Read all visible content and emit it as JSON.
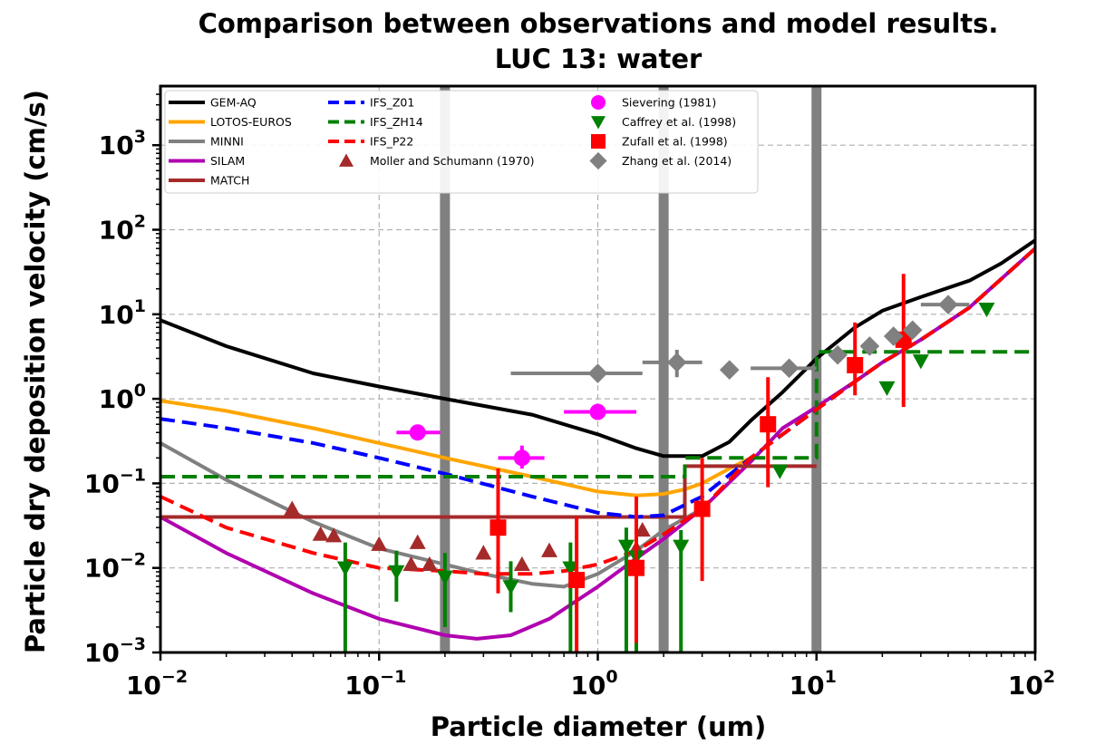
{
  "chart_data": {
    "type": "line",
    "title": "Comparison between observations and model results.",
    "subtitle": "LUC 13: water",
    "xlabel": "Particle diameter (um)",
    "ylabel": "Particle dry deposition velocity (cm/s)",
    "x_scale": "log",
    "y_scale": "log",
    "xlim": [
      0.01,
      100
    ],
    "ylim": [
      0.001,
      5000
    ],
    "x_ticks": [
      {
        "value": 0.01,
        "base": "10",
        "exp": "−2"
      },
      {
        "value": 0.1,
        "base": "10",
        "exp": "−1"
      },
      {
        "value": 1,
        "base": "10",
        "exp": "0"
      },
      {
        "value": 10,
        "base": "10",
        "exp": "1"
      },
      {
        "value": 100,
        "base": "10",
        "exp": "2"
      }
    ],
    "y_ticks": [
      {
        "value": 0.001,
        "base": "10",
        "exp": "−3"
      },
      {
        "value": 0.01,
        "base": "10",
        "exp": "−2"
      },
      {
        "value": 0.1,
        "base": "10",
        "exp": "−1"
      },
      {
        "value": 1,
        "base": "10",
        "exp": "0"
      },
      {
        "value": 10,
        "base": "10",
        "exp": "1"
      },
      {
        "value": 100,
        "base": "10",
        "exp": "2"
      },
      {
        "value": 1000,
        "base": "10",
        "exp": "3"
      }
    ],
    "grid": "dashed",
    "legend_position": "top-left",
    "vertical_bands": [
      0.2,
      2.0,
      10.0
    ],
    "series": [
      {
        "name": "GEM-AQ",
        "kind": "line",
        "color": "#000000",
        "dash": "solid",
        "x": [
          0.01,
          0.02,
          0.05,
          0.1,
          0.2,
          0.5,
          1.0,
          1.5,
          2.0,
          3.0,
          4.0,
          5.0,
          7.0,
          10.0,
          15.0,
          20.0,
          30.0,
          50.0,
          70.0,
          100.0
        ],
        "y": [
          8.5,
          4.2,
          2.0,
          1.4,
          1.0,
          0.65,
          0.38,
          0.26,
          0.21,
          0.21,
          0.31,
          0.55,
          1.2,
          3.0,
          7.0,
          11.0,
          16.0,
          25.0,
          40.0,
          75.0
        ]
      },
      {
        "name": "LOTOS-EUROS",
        "kind": "line",
        "color": "#ffa500",
        "dash": "solid",
        "x": [
          0.01,
          0.02,
          0.05,
          0.1,
          0.2,
          0.5,
          1.0,
          1.5,
          2.0,
          2.5,
          3.0,
          4.0,
          5.0
        ],
        "y": [
          0.95,
          0.72,
          0.45,
          0.3,
          0.2,
          0.12,
          0.08,
          0.072,
          0.075,
          0.085,
          0.1,
          0.15,
          0.2
        ]
      },
      {
        "name": "MINNI",
        "kind": "line",
        "color": "#808080",
        "dash": "solid",
        "x": [
          0.01,
          0.02,
          0.05,
          0.1,
          0.2,
          0.3,
          0.5,
          0.7,
          1.0,
          1.5,
          2.0,
          3.0
        ],
        "y": [
          0.3,
          0.11,
          0.035,
          0.017,
          0.011,
          0.0085,
          0.0065,
          0.006,
          0.0085,
          0.016,
          0.028,
          0.05
        ]
      },
      {
        "name": "SILAM",
        "kind": "line",
        "color": "#b000b0",
        "dash": "solid",
        "x": [
          0.01,
          0.02,
          0.05,
          0.1,
          0.2,
          0.28,
          0.4,
          0.6,
          1.0,
          1.5,
          2.0,
          3.0,
          5.0,
          7.0,
          10.0,
          15.0,
          20.0,
          30.0,
          50.0,
          100.0
        ],
        "y": [
          0.04,
          0.015,
          0.005,
          0.0025,
          0.0016,
          0.00145,
          0.0016,
          0.0025,
          0.006,
          0.013,
          0.022,
          0.05,
          0.18,
          0.45,
          0.8,
          1.6,
          2.7,
          5.0,
          12.0,
          60.0
        ]
      },
      {
        "name": "MATCH",
        "kind": "step",
        "color": "#a52a2a",
        "dash": "solid",
        "x": [
          0.01,
          2.5,
          2.5,
          10.0
        ],
        "y": [
          0.04,
          0.04,
          0.16,
          0.16
        ]
      },
      {
        "name": "IFS_Z01",
        "kind": "line",
        "color": "#0000ff",
        "dash": "dashed",
        "x": [
          0.01,
          0.02,
          0.05,
          0.1,
          0.2,
          0.5,
          1.0,
          1.5,
          2.0,
          3.0,
          5.0,
          10.0,
          15.0,
          20.0,
          30.0,
          50.0,
          100.0
        ],
        "y": [
          0.58,
          0.45,
          0.3,
          0.2,
          0.13,
          0.07,
          0.045,
          0.04,
          0.042,
          0.07,
          0.2,
          0.75,
          1.6,
          2.7,
          5.0,
          12.0,
          60.0
        ]
      },
      {
        "name": "IFS_ZH14",
        "kind": "step",
        "color": "#008000",
        "dash": "dashed",
        "x": [
          0.01,
          2.5,
          2.5,
          10.0,
          10.0,
          100.0
        ],
        "y": [
          0.12,
          0.12,
          0.2,
          0.2,
          3.6,
          3.6
        ]
      },
      {
        "name": "IFS_P22",
        "kind": "line",
        "color": "#ff0000",
        "dash": "dashed",
        "x": [
          0.01,
          0.02,
          0.05,
          0.1,
          0.2,
          0.3,
          0.5,
          0.7,
          1.0,
          1.5,
          2.0,
          3.0,
          5.0,
          10.0,
          15.0,
          20.0,
          30.0,
          50.0,
          100.0
        ],
        "y": [
          0.07,
          0.03,
          0.015,
          0.01,
          0.0092,
          0.0085,
          0.0085,
          0.0092,
          0.011,
          0.016,
          0.025,
          0.05,
          0.2,
          0.75,
          1.6,
          2.7,
          5.0,
          12.0,
          60.0
        ]
      },
      {
        "name": "Moller and Schumann (1970)",
        "kind": "scatter",
        "color": "#a52a2a",
        "marker": "triangle-up",
        "points": [
          [
            0.04,
            0.05
          ],
          [
            0.054,
            0.025
          ],
          [
            0.062,
            0.024
          ],
          [
            0.1,
            0.019
          ],
          [
            0.14,
            0.011
          ],
          [
            0.15,
            0.02
          ],
          [
            0.17,
            0.011
          ],
          [
            0.3,
            0.015
          ],
          [
            0.45,
            0.011
          ],
          [
            0.6,
            0.016
          ],
          [
            1.5,
            0.017
          ],
          [
            1.6,
            0.028
          ]
        ]
      },
      {
        "name": "Sievering (1981)",
        "kind": "scatter",
        "color": "#ff00ff",
        "marker": "circle",
        "points": [
          [
            0.15,
            0.4,
            0.12,
            0.19
          ],
          [
            0.45,
            0.2,
            0.35,
            0.57
          ],
          [
            1.0,
            0.7,
            0.7,
            1.5
          ]
        ],
        "y_err": [
          null,
          [
            0.15,
            0.28
          ],
          null
        ]
      },
      {
        "name": "Caffrey et al. (1998)",
        "kind": "scatter",
        "color": "#008000",
        "marker": "triangle-down",
        "points": [
          [
            0.07,
            0.01
          ],
          [
            0.12,
            0.009
          ],
          [
            0.2,
            0.0078
          ],
          [
            0.4,
            0.006
          ],
          [
            0.75,
            0.01
          ],
          [
            1.35,
            0.018
          ],
          [
            1.5,
            0.0135
          ],
          [
            2.4,
            0.018
          ],
          [
            6.8,
            0.14
          ],
          [
            21.0,
            1.35
          ],
          [
            30.0,
            2.8
          ],
          [
            60.0,
            11.5
          ]
        ],
        "y_err": [
          [
            0.001,
            0.02
          ],
          [
            0.004,
            0.016
          ],
          [
            0.002,
            0.015
          ],
          [
            0.003,
            0.012
          ],
          [
            0.001,
            0.02
          ],
          [
            0.001,
            0.03
          ],
          [
            0.001,
            0.03
          ],
          [
            0.001,
            0.028
          ],
          null,
          null,
          null,
          null
        ]
      },
      {
        "name": "Zufall et al. (1998)",
        "kind": "scatter",
        "color": "#ff0000",
        "marker": "square",
        "points": [
          [
            0.35,
            0.03
          ],
          [
            0.8,
            0.0072
          ],
          [
            1.5,
            0.01
          ],
          [
            3.0,
            0.05
          ],
          [
            6.0,
            0.5
          ],
          [
            15.0,
            2.5
          ],
          [
            25.0,
            5.0
          ]
        ],
        "y_err": [
          [
            0.005,
            0.15
          ],
          [
            0.001,
            0.04
          ],
          [
            0.0013,
            0.07
          ],
          [
            0.007,
            0.2
          ],
          [
            0.09,
            1.8
          ],
          [
            1.1,
            8.0
          ],
          [
            0.8,
            30.0
          ]
        ]
      },
      {
        "name": "Zhang et al. (2014)",
        "kind": "scatter",
        "color": "#808080",
        "marker": "diamond",
        "points": [
          [
            1.0,
            2.0
          ],
          [
            2.3,
            2.7
          ],
          [
            4.0,
            2.2
          ],
          [
            7.5,
            2.3
          ],
          [
            12.5,
            3.3
          ],
          [
            17.5,
            4.2
          ],
          [
            22.5,
            5.5
          ],
          [
            27.5,
            6.5
          ],
          [
            40.0,
            13.0
          ]
        ],
        "x_err": [
          [
            0.4,
            1.6
          ],
          [
            1.6,
            3.0
          ],
          null,
          [
            5.0,
            10.0
          ],
          null,
          null,
          null,
          null,
          [
            30.0,
            50.0
          ]
        ],
        "y_err": [
          null,
          [
            1.8,
            3.8
          ],
          null,
          null,
          null,
          null,
          null,
          null,
          null
        ]
      }
    ]
  }
}
